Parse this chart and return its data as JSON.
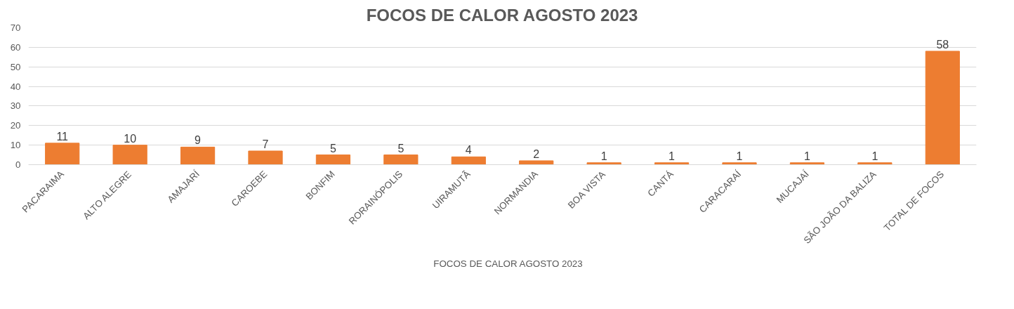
{
  "chart_data": {
    "type": "bar",
    "title": "FOCOS DE CALOR AGOSTO 2023",
    "categories": [
      "PACARAIMA",
      "ALTO ALEGRE",
      "AMAJARÍ",
      "CAROEBE",
      "BONFIM",
      "RORAINÓPOLIS",
      "UIRAMUTÃ",
      "NORMANDIA",
      "BOA VISTA",
      "CANTÁ",
      "CARACARAÍ",
      "MUCAJAÍ",
      "SÃO JOÃO DA BALIZA",
      "TOTAL DE FOCOS"
    ],
    "series": [
      {
        "name": "FOCOS DE CALOR AGOSTO 2023",
        "color": "#ed7d31",
        "values": [
          11,
          10,
          9,
          7,
          5,
          5,
          4,
          2,
          1,
          1,
          1,
          1,
          1,
          58
        ]
      }
    ],
    "ylim": [
      0,
      70
    ],
    "yticks": [
      0,
      10,
      20,
      30,
      40,
      50,
      60,
      70
    ],
    "grid": "y",
    "legend": "bottom",
    "data_labels": true
  }
}
